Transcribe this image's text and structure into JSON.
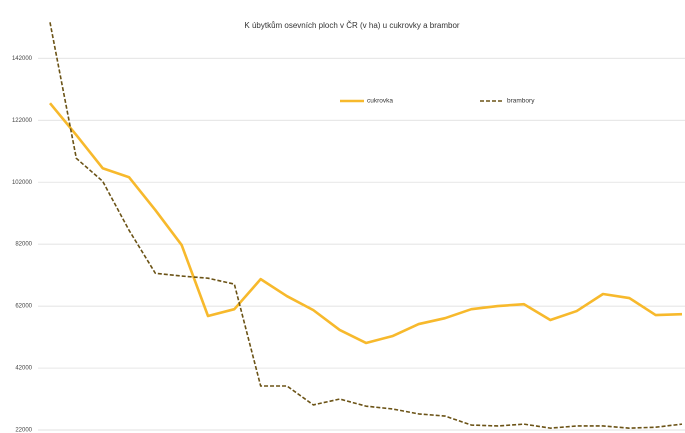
{
  "chart_data": {
    "type": "line",
    "title": "K úbytkům osevních ploch v ČR (v ha) u cukrovky a brambor",
    "categories": [
      null,
      null,
      null,
      null,
      null,
      null,
      null,
      null,
      null,
      null,
      null,
      null,
      null,
      null,
      null,
      null,
      null,
      null,
      null,
      null,
      null,
      null,
      null,
      null,
      null
    ],
    "series": [
      {
        "name": "cukrovka",
        "color": "#f7b92c",
        "dash": "solid",
        "values": [
          127500,
          117200,
          106500,
          103600,
          93000,
          81700,
          58800,
          61000,
          70700,
          65200,
          60700,
          54300,
          50100,
          52300,
          56200,
          58100,
          61000,
          62000,
          62600,
          57500,
          60400,
          65900,
          64600,
          59100,
          59400
        ]
      },
      {
        "name": "brambory",
        "color": "#6b5316",
        "dash": "dashed",
        "values": [
          153600,
          109700,
          102300,
          86500,
          72600,
          71700,
          71000,
          69100,
          36200,
          36200,
          30100,
          32000,
          29700,
          28800,
          27200,
          26500,
          23600,
          23300,
          23900,
          22600,
          23300,
          23300,
          22600,
          22900,
          23900
        ]
      }
    ],
    "ylim": [
      22000,
      155000
    ],
    "yticks": [
      22000,
      42000,
      62000,
      82000,
      102000,
      122000,
      142000
    ],
    "grid": true,
    "legend": "top"
  }
}
